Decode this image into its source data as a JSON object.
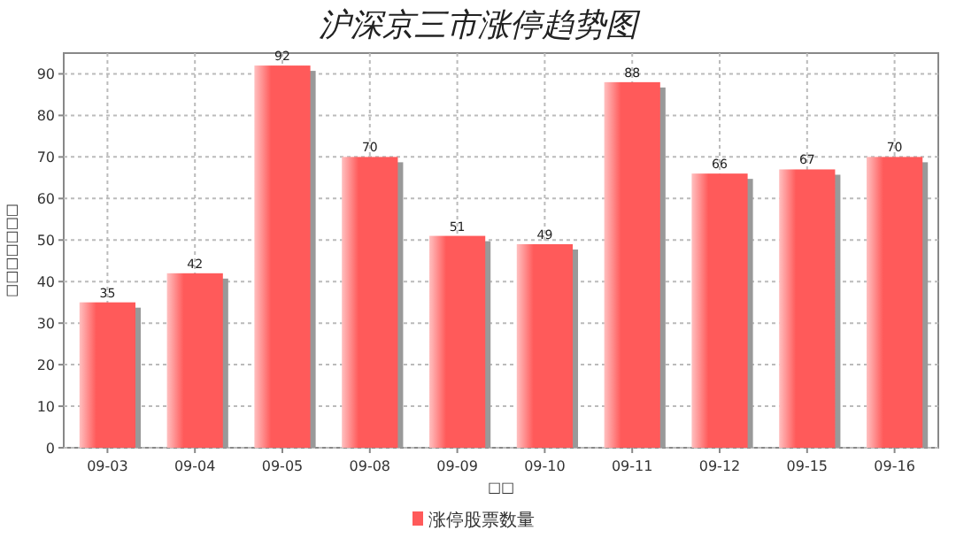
{
  "chart_data": {
    "type": "bar",
    "title": "沪深京三市涨停趋势图",
    "xlabel": "□□",
    "ylabel": "□□□□□□□",
    "categories": [
      "09-03",
      "09-04",
      "09-05",
      "09-08",
      "09-09",
      "09-10",
      "09-11",
      "09-12",
      "09-15",
      "09-16"
    ],
    "series": [
      {
        "name": "涨停股票数量",
        "color": "#ff5a5a",
        "values": [
          35,
          42,
          92,
          70,
          51,
          49,
          88,
          66,
          67,
          70
        ]
      }
    ],
    "ylim": [
      0,
      95
    ],
    "yticks": [
      0,
      10,
      20,
      30,
      40,
      50,
      60,
      70,
      80,
      90
    ],
    "grid": true,
    "legend": "bottom",
    "data_labels": true
  }
}
